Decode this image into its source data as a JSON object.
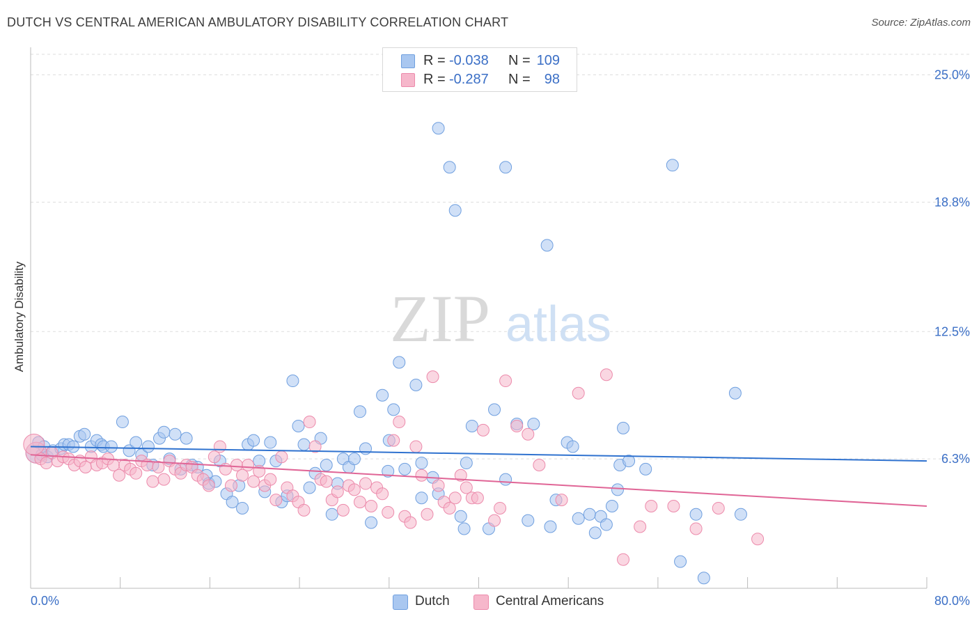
{
  "header": {
    "title": "DUTCH VS CENTRAL AMERICAN AMBULATORY DISABILITY CORRELATION CHART",
    "source": "Source: ZipAtlas.com"
  },
  "watermark": {
    "zip": "ZIP",
    "atlas": "atlas"
  },
  "stats_box": {
    "rows": [
      {
        "r_label": "R =",
        "r_value": "-0.038",
        "n_label": "N =",
        "n_value": "109",
        "color": "#a9c7f0"
      },
      {
        "r_label": "R =",
        "r_value": "-0.287",
        "n_label": "N =",
        "n_value": "98",
        "color": "#f6b7cb"
      }
    ]
  },
  "legend": {
    "items": [
      {
        "label": "Dutch",
        "color": "#a9c7f0"
      },
      {
        "label": "Central Americans",
        "color": "#f6b7cb"
      }
    ]
  },
  "colors": {
    "dutch_fill": "#a9c7f0",
    "dutch_stroke": "#6f9fdf",
    "dutch_line": "#2f72cf",
    "ca_fill": "#f6b7cb",
    "ca_stroke": "#ec8aab",
    "ca_line": "#e06596",
    "axis_text": "#3b6fc6",
    "grid": "#dddddd"
  },
  "chart_data": {
    "type": "scatter",
    "title": "DUTCH VS CENTRAL AMERICAN AMBULATORY DISABILITY CORRELATION CHART",
    "xlabel": "",
    "ylabel": "Ambulatory Disability",
    "xlim": [
      0,
      80
    ],
    "ylim": [
      0,
      26
    ],
    "x_tick_labels": [
      {
        "value": 0,
        "label": "0.0%"
      },
      {
        "value": 80,
        "label": "80.0%"
      }
    ],
    "y_tick_labels": [
      {
        "value": 6.3,
        "label": "6.3%"
      },
      {
        "value": 12.5,
        "label": "12.5%"
      },
      {
        "value": 18.8,
        "label": "18.8%"
      },
      {
        "value": 25.0,
        "label": "25.0%"
      }
    ],
    "grid": true,
    "series": [
      {
        "name": "Dutch",
        "r": -0.038,
        "n": 109,
        "trend": {
          "x": [
            0,
            80
          ],
          "y": [
            6.9,
            6.2
          ]
        },
        "points": [
          [
            0.5,
            6.6
          ],
          [
            0.7,
            7.1
          ],
          [
            1,
            6.5
          ],
          [
            1.2,
            6.9
          ],
          [
            1.5,
            6.4
          ],
          [
            2.0,
            6.7
          ],
          [
            2.7,
            6.8
          ],
          [
            3.0,
            7.0
          ],
          [
            3.4,
            7.0
          ],
          [
            3.8,
            6.9
          ],
          [
            4.4,
            7.4
          ],
          [
            4.8,
            7.5
          ],
          [
            5.4,
            6.9
          ],
          [
            5.9,
            7.2
          ],
          [
            6.3,
            7.0
          ],
          [
            6.5,
            6.9
          ],
          [
            7.2,
            6.9
          ],
          [
            8.2,
            8.1
          ],
          [
            8.8,
            6.7
          ],
          [
            9.4,
            7.1
          ],
          [
            9.9,
            6.5
          ],
          [
            10.5,
            6.9
          ],
          [
            10.9,
            6.0
          ],
          [
            11.5,
            7.3
          ],
          [
            11.9,
            7.6
          ],
          [
            12.4,
            6.3
          ],
          [
            12.9,
            7.5
          ],
          [
            13.9,
            7.3
          ],
          [
            13.4,
            5.8
          ],
          [
            14.4,
            6.0
          ],
          [
            14.9,
            5.9
          ],
          [
            15.7,
            5.5
          ],
          [
            15.9,
            5.1
          ],
          [
            16.5,
            5.2
          ],
          [
            16.9,
            6.2
          ],
          [
            17.5,
            4.6
          ],
          [
            18.0,
            4.2
          ],
          [
            18.6,
            5.0
          ],
          [
            18.9,
            3.9
          ],
          [
            19.4,
            7.0
          ],
          [
            19.9,
            7.2
          ],
          [
            20.4,
            6.2
          ],
          [
            20.9,
            4.7
          ],
          [
            21.4,
            7.1
          ],
          [
            21.9,
            6.2
          ],
          [
            22.4,
            4.2
          ],
          [
            22.9,
            4.5
          ],
          [
            23.4,
            10.1
          ],
          [
            23.9,
            7.9
          ],
          [
            24.4,
            7.0
          ],
          [
            24.9,
            4.9
          ],
          [
            25.4,
            5.6
          ],
          [
            25.9,
            7.3
          ],
          [
            26.4,
            6.0
          ],
          [
            26.9,
            3.6
          ],
          [
            27.4,
            5.1
          ],
          [
            27.9,
            6.3
          ],
          [
            28.4,
            5.9
          ],
          [
            28.9,
            6.3
          ],
          [
            29.9,
            6.8
          ],
          [
            29.4,
            8.6
          ],
          [
            30.4,
            3.2
          ],
          [
            31.4,
            9.4
          ],
          [
            31.9,
            5.7
          ],
          [
            32.4,
            8.7
          ],
          [
            32.9,
            11.0
          ],
          [
            32.0,
            7.2
          ],
          [
            33.4,
            5.8
          ],
          [
            34.4,
            9.9
          ],
          [
            34.9,
            4.4
          ],
          [
            34.9,
            6.1
          ],
          [
            35.9,
            5.4
          ],
          [
            36.4,
            4.6
          ],
          [
            37.4,
            20.5
          ],
          [
            37.9,
            18.4
          ],
          [
            38.4,
            3.5
          ],
          [
            38.7,
            2.9
          ],
          [
            38.9,
            6.1
          ],
          [
            39.4,
            7.9
          ],
          [
            40.9,
            2.9
          ],
          [
            41.4,
            8.7
          ],
          [
            42.4,
            5.3
          ],
          [
            42.4,
            20.5
          ],
          [
            43.4,
            8.0
          ],
          [
            44.4,
            3.3
          ],
          [
            44.9,
            8.0
          ],
          [
            46.1,
            16.7
          ],
          [
            46.4,
            3.0
          ],
          [
            46.9,
            4.3
          ],
          [
            47.9,
            7.1
          ],
          [
            48.4,
            6.9
          ],
          [
            48.9,
            3.4
          ],
          [
            49.9,
            3.6
          ],
          [
            50.4,
            2.7
          ],
          [
            50.9,
            3.5
          ],
          [
            51.4,
            3.1
          ],
          [
            51.9,
            4.0
          ],
          [
            52.4,
            4.8
          ],
          [
            52.6,
            6.0
          ],
          [
            52.9,
            7.8
          ],
          [
            53.4,
            6.2
          ],
          [
            54.9,
            5.8
          ],
          [
            57.3,
            20.6
          ],
          [
            58.0,
            1.3
          ],
          [
            59.4,
            3.6
          ],
          [
            60.1,
            0.5
          ],
          [
            62.9,
            9.5
          ],
          [
            63.4,
            3.6
          ],
          [
            36.4,
            22.4
          ]
        ]
      },
      {
        "name": "Central Americans",
        "r": -0.287,
        "n": 98,
        "trend": {
          "x": [
            0,
            80
          ],
          "y": [
            6.5,
            4.0
          ]
        },
        "points": [
          [
            0.5,
            6.6
          ],
          [
            0.9,
            6.3
          ],
          [
            1.4,
            6.1
          ],
          [
            1.9,
            6.6
          ],
          [
            2.4,
            6.2
          ],
          [
            2.9,
            6.4
          ],
          [
            3.4,
            6.3
          ],
          [
            3.9,
            6.0
          ],
          [
            4.4,
            6.2
          ],
          [
            4.9,
            5.9
          ],
          [
            5.4,
            6.4
          ],
          [
            5.9,
            6.0
          ],
          [
            6.4,
            6.1
          ],
          [
            6.9,
            6.3
          ],
          [
            7.4,
            6.0
          ],
          [
            7.9,
            5.5
          ],
          [
            8.4,
            6.0
          ],
          [
            8.9,
            5.8
          ],
          [
            9.4,
            5.6
          ],
          [
            9.9,
            6.2
          ],
          [
            10.4,
            6.0
          ],
          [
            10.9,
            5.2
          ],
          [
            11.4,
            5.9
          ],
          [
            11.9,
            5.3
          ],
          [
            12.4,
            6.2
          ],
          [
            12.9,
            5.8
          ],
          [
            13.4,
            5.6
          ],
          [
            13.9,
            6.0
          ],
          [
            14.4,
            5.9
          ],
          [
            14.9,
            5.5
          ],
          [
            15.4,
            5.3
          ],
          [
            15.9,
            5.0
          ],
          [
            16.4,
            6.4
          ],
          [
            16.9,
            6.9
          ],
          [
            17.4,
            5.8
          ],
          [
            17.9,
            5.0
          ],
          [
            18.4,
            6.0
          ],
          [
            18.9,
            5.5
          ],
          [
            19.4,
            6.0
          ],
          [
            19.9,
            5.2
          ],
          [
            20.4,
            5.7
          ],
          [
            20.9,
            5.0
          ],
          [
            21.4,
            5.3
          ],
          [
            21.9,
            4.3
          ],
          [
            22.4,
            6.4
          ],
          [
            22.9,
            4.9
          ],
          [
            23.4,
            4.5
          ],
          [
            23.9,
            4.2
          ],
          [
            24.4,
            3.8
          ],
          [
            24.9,
            8.1
          ],
          [
            25.4,
            6.9
          ],
          [
            25.9,
            5.3
          ],
          [
            26.4,
            5.2
          ],
          [
            26.9,
            4.3
          ],
          [
            27.4,
            4.7
          ],
          [
            27.9,
            3.8
          ],
          [
            28.4,
            5.0
          ],
          [
            28.9,
            4.8
          ],
          [
            29.4,
            4.2
          ],
          [
            29.9,
            5.1
          ],
          [
            30.4,
            4.0
          ],
          [
            30.9,
            4.9
          ],
          [
            31.4,
            4.6
          ],
          [
            31.9,
            3.7
          ],
          [
            32.4,
            7.2
          ],
          [
            32.9,
            8.1
          ],
          [
            33.4,
            3.5
          ],
          [
            33.9,
            3.2
          ],
          [
            34.4,
            6.9
          ],
          [
            34.9,
            5.5
          ],
          [
            35.4,
            3.6
          ],
          [
            35.9,
            10.3
          ],
          [
            36.4,
            5.0
          ],
          [
            36.9,
            4.2
          ],
          [
            37.4,
            3.9
          ],
          [
            37.9,
            4.4
          ],
          [
            38.4,
            5.5
          ],
          [
            38.9,
            4.9
          ],
          [
            39.4,
            4.4
          ],
          [
            39.9,
            4.4
          ],
          [
            40.4,
            7.7
          ],
          [
            41.4,
            3.3
          ],
          [
            41.9,
            3.9
          ],
          [
            42.4,
            10.1
          ],
          [
            43.4,
            7.9
          ],
          [
            44.4,
            7.5
          ],
          [
            45.4,
            6.0
          ],
          [
            47.4,
            4.3
          ],
          [
            48.9,
            9.5
          ],
          [
            51.4,
            10.4
          ],
          [
            52.9,
            1.4
          ],
          [
            54.4,
            3.0
          ],
          [
            55.4,
            4.0
          ],
          [
            57.4,
            4.0
          ],
          [
            59.4,
            2.9
          ],
          [
            61.4,
            3.9
          ],
          [
            64.9,
            2.4
          ],
          [
            0.3,
            7.0
          ]
        ]
      }
    ]
  }
}
